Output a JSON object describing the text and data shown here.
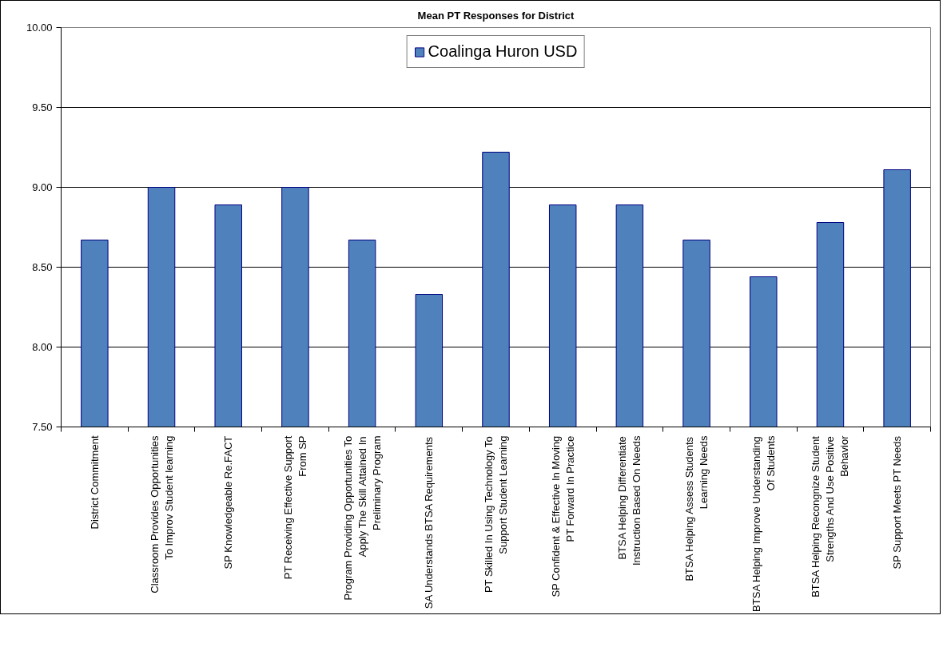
{
  "chart_data": {
    "type": "bar",
    "title": "Mean PT Responses for District",
    "categories": [
      "District Commitment",
      "Classroom Provides Opportunities To Improv Student learning",
      "SP Knowledgeable Re.FACT",
      "PT Receiving Effective Support From SP",
      "Program Providing Opportunities To Apply The Skill Attained In Preliminary Program",
      "SA Understands BTSA Requirements",
      "PT Skilled In Using Technology To Support Student Learning",
      "SP Confident & Effective In Moving PT Forward In Practice",
      "BTSA Helping Differentiate Instruction Based On Needs",
      "BTSA Helping Assess Students Learning Needs",
      "BTSA Helping Improve Understanding Of Students",
      "BTSA Helping Recongnize Student Strengths And Use Positive Behavior",
      "SP Support Meets PT Needs"
    ],
    "series": [
      {
        "name": "Coalinga Huron USD",
        "color": "#4f81bd",
        "values": [
          8.67,
          9.0,
          8.89,
          9.0,
          8.67,
          8.33,
          9.22,
          8.89,
          8.89,
          8.67,
          8.44,
          8.78,
          9.11
        ]
      }
    ],
    "ylim": [
      7.5,
      10.0
    ],
    "yticks": [
      {
        "value": 7.5,
        "label": "7.50"
      },
      {
        "value": 8.0,
        "label": "8.00"
      },
      {
        "value": 8.5,
        "label": "8.50"
      },
      {
        "value": 9.0,
        "label": "9.00"
      },
      {
        "value": 9.5,
        "label": "9.50"
      },
      {
        "value": 10.0,
        "label": "10.00"
      }
    ],
    "grid": "y",
    "legend": "top"
  }
}
